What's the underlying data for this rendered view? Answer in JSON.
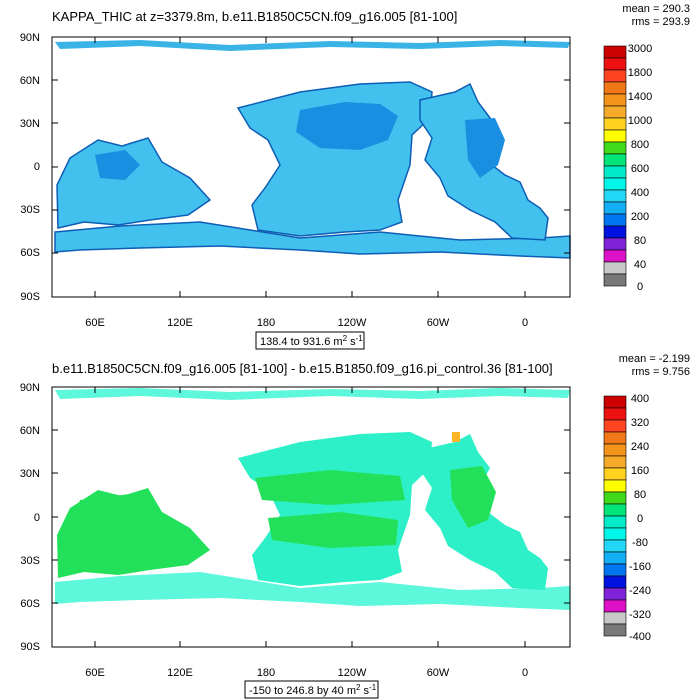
{
  "panels": [
    {
      "title": "KAPPA_THIC at z=3379.8m, b.e11.B1850C5CN.f09_g16.005 [81-100]",
      "stats": {
        "mean": "mean = 290.3",
        "rms": "rms = 293.9"
      },
      "range_text": "138.4 to 931.6 m",
      "units_sup": "2",
      "units_tail": " s",
      "units_exp": "-1",
      "colorbar_labels": [
        "3000",
        "1800",
        "1400",
        "1000",
        "800",
        "600",
        "400",
        "200",
        "80",
        "40",
        "0"
      ],
      "colors": {
        "shallow": "#3ab4e6",
        "mid": "#42c0ee",
        "deep": "#1a8ee0",
        "edge": "#0d5db5",
        "dark": "#0a2e7a"
      }
    },
    {
      "title": "b.e11.B1850C5CN.f09_g16.005 [81-100] - b.e15.B1850.f09_g16.pi_control.36 [81-100]",
      "stats": {
        "mean": "mean = -2.199",
        "rms": "rms = 9.756"
      },
      "range_text": "-150 to 246.8 by 40 m",
      "units_sup": "2",
      "units_tail": " s",
      "units_exp": "-1",
      "colorbar_labels": [
        "400",
        "320",
        "240",
        "160",
        "80",
        "0",
        "-80",
        "-160",
        "-240",
        "-320",
        "-400"
      ],
      "colors": {
        "green": "#22e05a",
        "cyan": "#2ef0c8",
        "lightcyan": "#5df7dc"
      }
    }
  ],
  "lat_ticks": [
    "90N",
    "60N",
    "30N",
    "0",
    "30S",
    "60S",
    "90S"
  ],
  "lon_ticks": [
    "60E",
    "120E",
    "180",
    "120W",
    "60W",
    "0"
  ],
  "colorbar_colors": [
    "#cc0000",
    "#ee1111",
    "#ff4422",
    "#f07818",
    "#f4941a",
    "#f6aa2a",
    "#ffd21f",
    "#ffff00",
    "#3fdb1a",
    "#00e57a",
    "#00ebc8",
    "#00f6e8",
    "#22d6f6",
    "#14aef4",
    "#0076f0",
    "#0012e0",
    "#7f22d8",
    "#dd11c8",
    "#c8c8c8",
    "#787878"
  ]
}
